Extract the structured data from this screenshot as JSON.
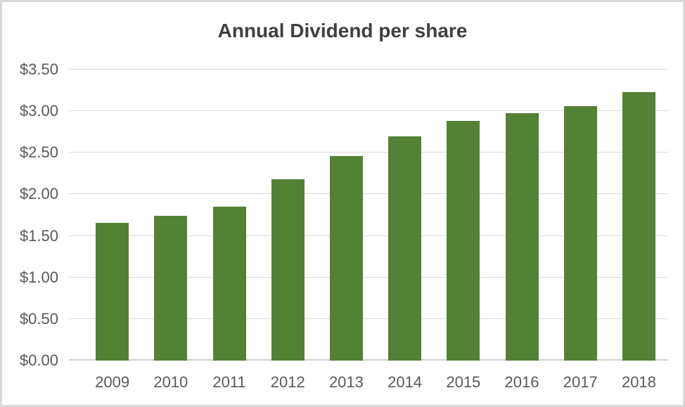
{
  "frame": {
    "background": "#ffffff",
    "border_color": "#d9d9d9"
  },
  "chart_data": {
    "type": "bar",
    "title": "Annual Dividend per share",
    "xlabel": "",
    "ylabel": "",
    "categories": [
      "2009",
      "2010",
      "2011",
      "2012",
      "2013",
      "2014",
      "2015",
      "2016",
      "2017",
      "2018"
    ],
    "values": [
      1.66,
      1.74,
      1.85,
      2.18,
      2.46,
      2.7,
      2.88,
      2.98,
      3.06,
      3.23
    ],
    "y_tick_labels": [
      "$0.00",
      "$0.50",
      "$1.00",
      "$1.50",
      "$2.00",
      "$2.50",
      "$3.00",
      "$3.50"
    ],
    "ylim": [
      0,
      3.5
    ],
    "y_step": 0.5,
    "grid": true,
    "legend_position": "none",
    "bar_color": "#548235",
    "gridline_color": "#d9d9d9",
    "axis_line_color": "#cfcfcf",
    "tick_label_color": "#595959",
    "title_color": "#404040"
  }
}
